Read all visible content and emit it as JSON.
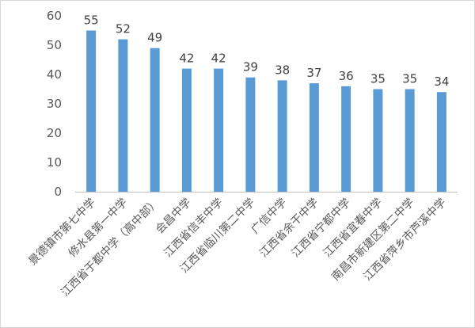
{
  "chart_data": {
    "type": "bar",
    "categories": [
      "景德镇市第七中学",
      "修水县第一中学",
      "江西省于都中学（高中部）",
      "会昌中学",
      "江西省信丰中学",
      "江西省临川第二中学",
      "广信中学",
      "江西省余干中学",
      "江西省宁都中学",
      "江西省宜春中学",
      "南昌市新建区第二中学",
      "江西省萍乡市芦溪中学"
    ],
    "values": [
      55,
      52,
      49,
      42,
      42,
      39,
      38,
      37,
      36,
      35,
      35,
      34
    ],
    "ylim": [
      0,
      60
    ],
    "yticks": [
      0,
      10,
      20,
      30,
      40,
      50,
      60
    ],
    "grid": false,
    "legend": "none",
    "bar_color": "#5b9bd5",
    "title": "",
    "xlabel": "",
    "ylabel": ""
  }
}
